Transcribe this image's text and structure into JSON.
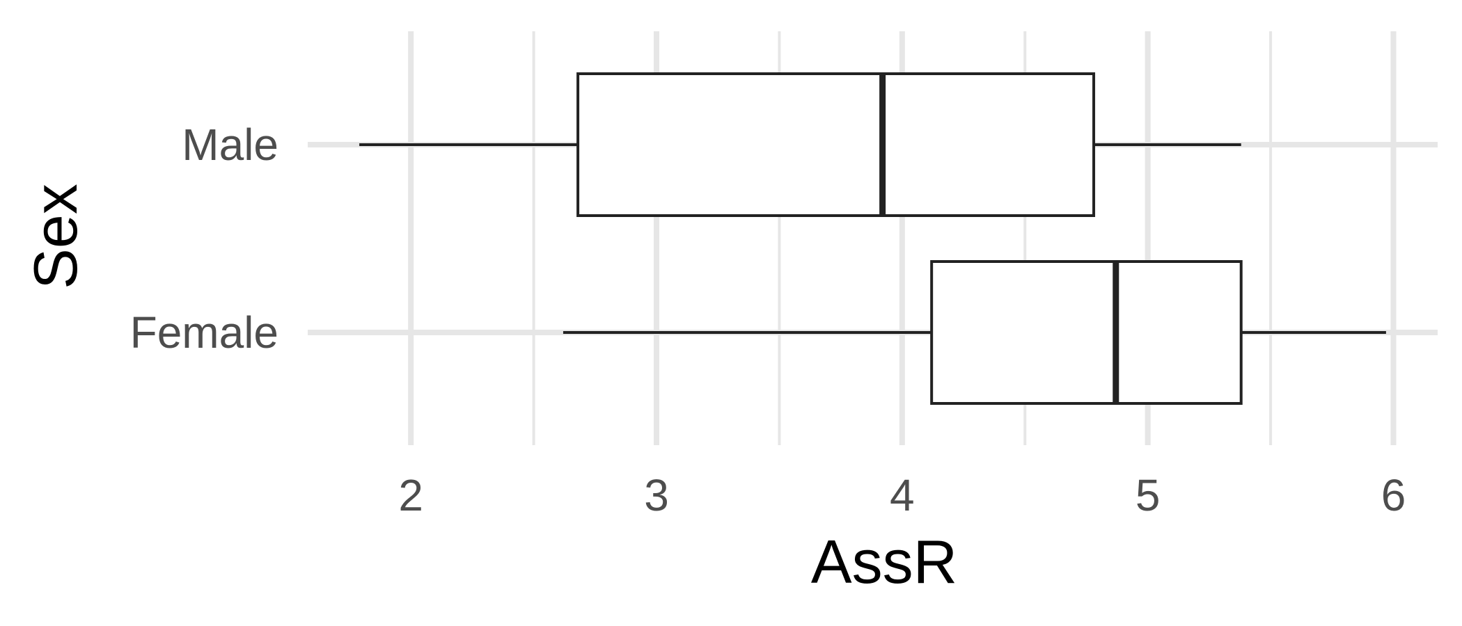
{
  "chart_data": {
    "type": "boxplot",
    "orientation": "horizontal",
    "title": "",
    "xlabel": "AssR",
    "ylabel": "Sex",
    "xlim": [
      1.58,
      6.18
    ],
    "x_ticks": [
      "2",
      "3",
      "4",
      "5",
      "6"
    ],
    "x_tick_values": [
      2,
      3,
      4,
      5,
      6
    ],
    "categories": [
      "Male",
      "Female"
    ],
    "series": [
      {
        "category": "Male",
        "whisker_low": 1.79,
        "q1": 2.68,
        "median": 3.92,
        "q3": 4.78,
        "whisker_high": 5.38
      },
      {
        "category": "Female",
        "whisker_low": 2.62,
        "q1": 4.12,
        "median": 4.87,
        "q3": 5.38,
        "whisker_high": 5.97
      }
    ],
    "grid": true,
    "legend": "none",
    "colors": {
      "box_fill": "#ffffff",
      "box_stroke": "#222222",
      "grid": "#e6e6e6"
    }
  }
}
